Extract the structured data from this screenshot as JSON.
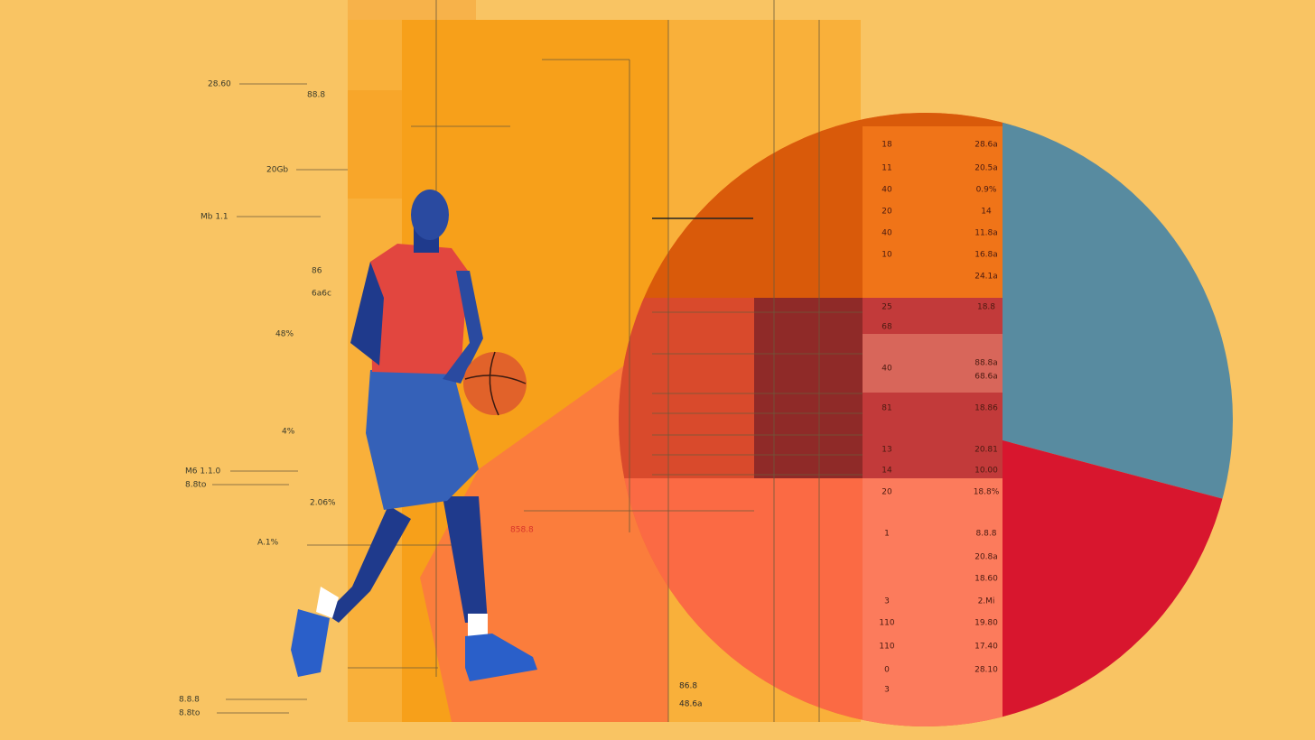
{
  "left_labels": [
    "28.60",
    "88.8",
    "20Gb",
    "Mb 1.1",
    "86",
    "6a6c",
    "48%",
    "4%",
    "M6 1.1.0",
    "8.8to",
    "2.06%",
    "A.1%",
    "8.8.8",
    "8.8to"
  ],
  "mid_labels": [
    "858.8",
    "86.8",
    "48.6a"
  ],
  "table": {
    "left_col": [
      "18",
      "11",
      "40",
      "20",
      "40",
      "10",
      "25",
      "68",
      "40",
      "81",
      "13",
      "14",
      "20",
      "1",
      "3",
      "110",
      "110",
      "0",
      "3"
    ],
    "right_col": [
      "28.6a",
      "20.5a",
      "0.9%",
      "14",
      "11.8a",
      "16.8a",
      "24.1a",
      "18.8",
      "88.8a",
      "68.6a",
      "18.86",
      "20.81",
      "10.00",
      "18.8%",
      "8.8.8",
      "20.8a",
      "18.60",
      "2.Mi",
      "19.80",
      "17.40",
      "28.10"
    ]
  }
}
